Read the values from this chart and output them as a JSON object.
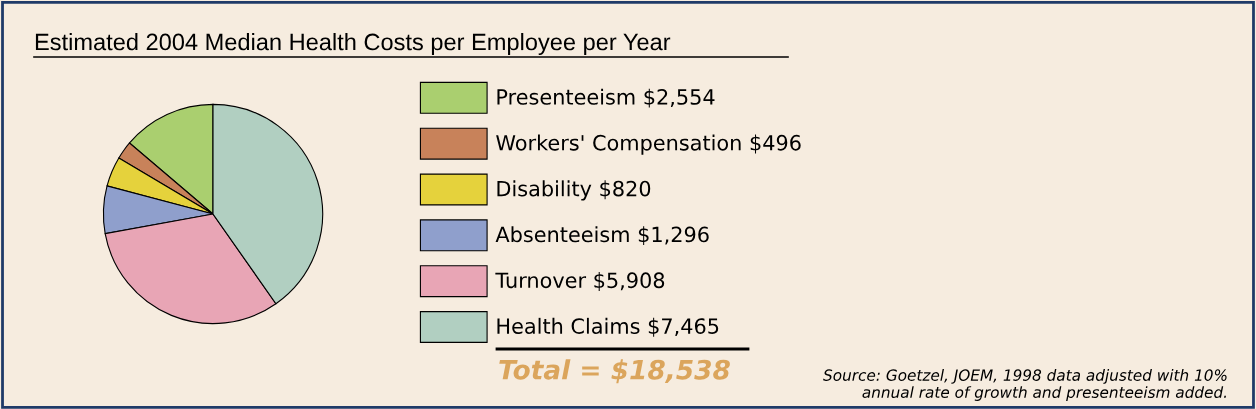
{
  "chart_data": {
    "type": "pie",
    "title": "Estimated 2004 Median Health Costs per Employee per Year",
    "categories": [
      "Presenteeism",
      "Workers' Compensation",
      "Disability",
      "Absenteeism",
      "Turnover",
      "Health Claims"
    ],
    "values": [
      2554,
      496,
      820,
      1296,
      5908,
      7465
    ],
    "value_labels": [
      "$2,554",
      "$496",
      "$820",
      "$1,296",
      "$5,908",
      "$7,465"
    ],
    "colors": [
      "#aacf6f",
      "#c8825a",
      "#e5d23c",
      "#8f9fcc",
      "#e8a5b5",
      "#b1cfc1"
    ],
    "legend": "right",
    "annotations": [
      "Total = $18,538",
      "Source: Goetzel, JOEM, 1998 data adjusted with 10%\nannual rate of growth and presenteeism added."
    ]
  }
}
